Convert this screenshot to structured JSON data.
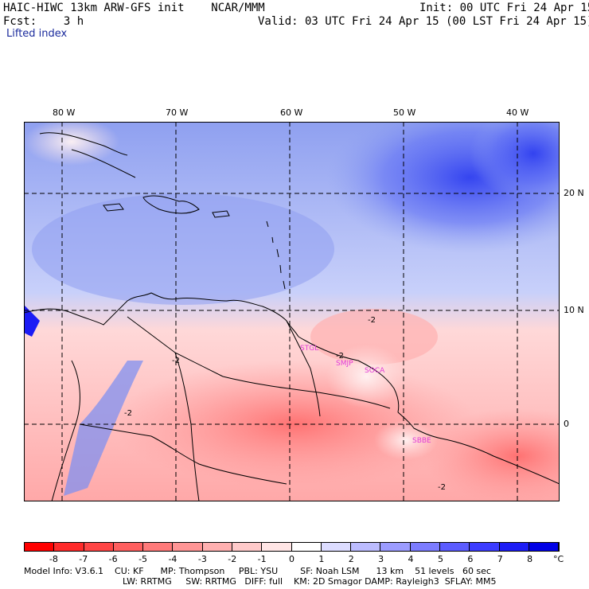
{
  "header": {
    "line1_left": "HAIC-HIWC 13km ARW-GFS init    NCAR/MMM",
    "line1_right": "Init: 00 UTC Fri 24 Apr 15",
    "line2_left": "Fcst:    3 h",
    "line2_right": "Valid: 03 UTC Fri 24 Apr 15 (00 LST Fri 24 Apr 15)",
    "field_name": "Lifted index"
  },
  "map": {
    "lon_labels": [
      "80 W",
      "70 W",
      "60 W",
      "50 W",
      "40 W"
    ],
    "lat_labels": [
      "20 N",
      "10 N",
      "0"
    ],
    "contour_labels": [
      "-2",
      "-2",
      "-2",
      "-2",
      "-2"
    ],
    "station_labels": [
      "STGL",
      "SMJP",
      "SOCA",
      "SBBE"
    ],
    "colors": {
      "station": "#e23ad8",
      "grid": "#000000",
      "coast": "#000000"
    }
  },
  "colorbar": {
    "ticks": [
      "-8",
      "-7",
      "-6",
      "-5",
      "-4",
      "-3",
      "-2",
      "-1",
      "0",
      "1",
      "2",
      "3",
      "4",
      "5",
      "6",
      "7",
      "8"
    ],
    "unit": "°C",
    "colors": [
      "#ff0000",
      "#ff2a2a",
      "#ff4545",
      "#ff5f5f",
      "#ff7a7a",
      "#ff9595",
      "#ffb0b0",
      "#ffcaca",
      "#ffe5e5",
      "#ffffff",
      "#dcdcff",
      "#bcbcff",
      "#9c9cff",
      "#7c7cff",
      "#5c5cff",
      "#3c3cff",
      "#1c1cf5",
      "#0000e6"
    ]
  },
  "footer": {
    "line1": "Model Info: V3.6.1    CU: KF      MP: Thompson     PBL: YSU        SF: Noah LSM      13 km    51 levels   60 sec",
    "line2": "LW: RRTMG     SW: RRTMG   DIFF: full    KM: 2D Smagor DAMP: Rayleigh3  SFLAY: MM5"
  }
}
